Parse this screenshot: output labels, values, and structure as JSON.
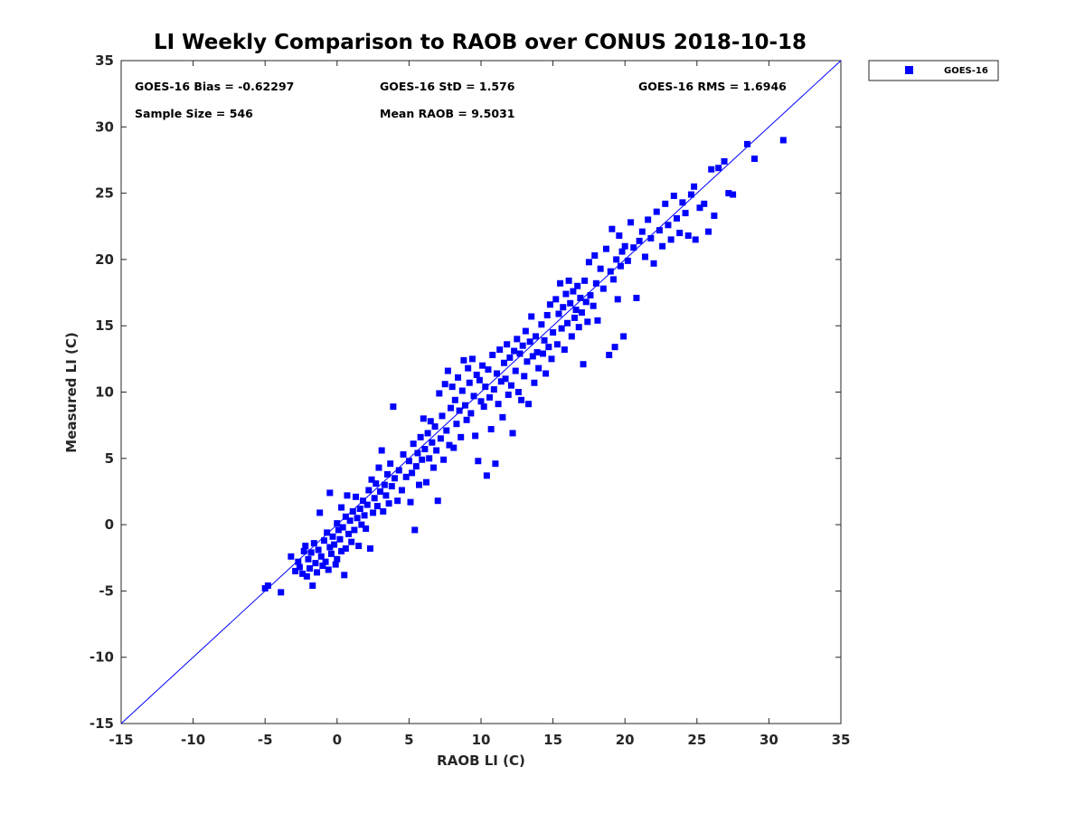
{
  "chart_data": {
    "type": "scatter",
    "title": "LI Weekly Comparison to RAOB over CONUS 2018-10-18",
    "xlabel": "RAOB LI (C)",
    "ylabel": "Measured LI (C)",
    "xlim": [
      -15,
      35
    ],
    "ylim": [
      -15,
      35
    ],
    "xticks": [
      "-15",
      "-10",
      "-5",
      "0",
      "5",
      "10",
      "15",
      "20",
      "25",
      "30",
      "35"
    ],
    "yticks": [
      "-15",
      "-10",
      "-5",
      "0",
      "5",
      "10",
      "15",
      "20",
      "25",
      "30",
      "35"
    ],
    "legend": {
      "position": "outside-top-right",
      "entries": [
        "GOES-16"
      ]
    },
    "stats": {
      "bias": "GOES-16 Bias = -0.62297",
      "std": "GOES-16 StD = 1.576",
      "rms": "GOES-16 RMS = 1.6946",
      "sample": "Sample Size = 546",
      "mean": "Mean RAOB = 9.5031"
    },
    "series": [
      {
        "name": "GOES-16",
        "color": "#0000ff",
        "marker": "square",
        "points": [
          [
            -5.0,
            -4.8
          ],
          [
            -4.8,
            -4.6
          ],
          [
            -3.9,
            -5.1
          ],
          [
            -3.2,
            -2.4
          ],
          [
            -2.9,
            -3.5
          ],
          [
            -2.7,
            -2.8
          ],
          [
            -2.6,
            -3.2
          ],
          [
            -2.4,
            -3.7
          ],
          [
            -2.3,
            -2.0
          ],
          [
            -2.2,
            -1.6
          ],
          [
            -2.1,
            -3.9
          ],
          [
            -2.0,
            -2.6
          ],
          [
            -1.9,
            -3.3
          ],
          [
            -1.8,
            -2.1
          ],
          [
            -1.7,
            -4.6
          ],
          [
            -1.6,
            -1.4
          ],
          [
            -1.5,
            -2.9
          ],
          [
            -1.4,
            -3.6
          ],
          [
            -1.3,
            -1.9
          ],
          [
            -1.2,
            0.9
          ],
          [
            -1.1,
            -2.4
          ],
          [
            -1.0,
            -3.1
          ],
          [
            -0.9,
            -1.2
          ],
          [
            -0.8,
            -2.8
          ],
          [
            -0.7,
            -0.6
          ],
          [
            -0.6,
            -3.4
          ],
          [
            -0.5,
            -1.7
          ],
          [
            -0.5,
            2.4
          ],
          [
            -0.4,
            -2.2
          ],
          [
            -0.3,
            -0.9
          ],
          [
            -0.2,
            -1.5
          ],
          [
            -0.1,
            -3.0
          ],
          [
            0.0,
            0.1
          ],
          [
            0.0,
            -2.6
          ],
          [
            0.1,
            -0.4
          ],
          [
            0.2,
            -1.1
          ],
          [
            0.3,
            -2.0
          ],
          [
            0.3,
            1.3
          ],
          [
            0.4,
            -0.2
          ],
          [
            0.5,
            -3.8
          ],
          [
            0.6,
            0.6
          ],
          [
            0.6,
            -1.8
          ],
          [
            0.7,
            2.2
          ],
          [
            0.8,
            -0.7
          ],
          [
            0.9,
            0.3
          ],
          [
            1.0,
            -1.3
          ],
          [
            1.1,
            1.0
          ],
          [
            1.2,
            -0.4
          ],
          [
            1.3,
            2.1
          ],
          [
            1.4,
            0.5
          ],
          [
            1.5,
            -1.6
          ],
          [
            1.6,
            1.2
          ],
          [
            1.7,
            0.0
          ],
          [
            1.8,
            1.8
          ],
          [
            1.9,
            0.7
          ],
          [
            2.0,
            -0.3
          ],
          [
            2.1,
            1.5
          ],
          [
            2.2,
            2.6
          ],
          [
            2.3,
            -1.8
          ],
          [
            2.4,
            3.4
          ],
          [
            2.5,
            0.9
          ],
          [
            2.6,
            2.0
          ],
          [
            2.7,
            3.1
          ],
          [
            2.8,
            1.4
          ],
          [
            2.9,
            4.3
          ],
          [
            3.0,
            2.5
          ],
          [
            3.1,
            5.6
          ],
          [
            3.2,
            1.0
          ],
          [
            3.3,
            3.0
          ],
          [
            3.4,
            2.2
          ],
          [
            3.5,
            3.8
          ],
          [
            3.6,
            1.6
          ],
          [
            3.7,
            4.6
          ],
          [
            3.8,
            2.9
          ],
          [
            3.9,
            8.9
          ],
          [
            4.0,
            3.5
          ],
          [
            4.2,
            1.8
          ],
          [
            4.3,
            4.1
          ],
          [
            4.5,
            2.6
          ],
          [
            4.6,
            5.3
          ],
          [
            4.8,
            3.6
          ],
          [
            5.0,
            4.8
          ],
          [
            5.1,
            1.7
          ],
          [
            5.2,
            3.9
          ],
          [
            5.3,
            6.1
          ],
          [
            5.4,
            -0.4
          ],
          [
            5.5,
            4.4
          ],
          [
            5.6,
            5.4
          ],
          [
            5.7,
            3.0
          ],
          [
            5.8,
            6.6
          ],
          [
            5.9,
            4.9
          ],
          [
            6.0,
            8.0
          ],
          [
            6.1,
            5.7
          ],
          [
            6.2,
            3.2
          ],
          [
            6.3,
            6.9
          ],
          [
            6.4,
            5.0
          ],
          [
            6.5,
            7.8
          ],
          [
            6.6,
            6.2
          ],
          [
            6.7,
            4.3
          ],
          [
            6.8,
            7.4
          ],
          [
            6.9,
            5.6
          ],
          [
            7.0,
            1.8
          ],
          [
            7.1,
            9.9
          ],
          [
            7.2,
            6.5
          ],
          [
            7.3,
            8.2
          ],
          [
            7.4,
            4.9
          ],
          [
            7.5,
            10.6
          ],
          [
            7.6,
            7.1
          ],
          [
            7.7,
            11.6
          ],
          [
            7.8,
            6.0
          ],
          [
            7.9,
            8.8
          ],
          [
            8.0,
            10.4
          ],
          [
            8.1,
            5.8
          ],
          [
            8.2,
            9.4
          ],
          [
            8.3,
            7.6
          ],
          [
            8.4,
            11.1
          ],
          [
            8.5,
            8.6
          ],
          [
            8.6,
            6.6
          ],
          [
            8.7,
            10.1
          ],
          [
            8.8,
            12.4
          ],
          [
            8.9,
            9.0
          ],
          [
            9.0,
            7.9
          ],
          [
            9.1,
            11.8
          ],
          [
            9.2,
            10.7
          ],
          [
            9.3,
            8.4
          ],
          [
            9.4,
            12.5
          ],
          [
            9.5,
            9.7
          ],
          [
            9.6,
            6.7
          ],
          [
            9.7,
            11.3
          ],
          [
            9.8,
            4.8
          ],
          [
            9.9,
            10.9
          ],
          [
            10.0,
            9.3
          ],
          [
            10.1,
            12.0
          ],
          [
            10.2,
            8.9
          ],
          [
            10.3,
            10.4
          ],
          [
            10.4,
            3.7
          ],
          [
            10.5,
            11.7
          ],
          [
            10.6,
            9.6
          ],
          [
            10.7,
            7.2
          ],
          [
            10.8,
            12.8
          ],
          [
            10.9,
            10.2
          ],
          [
            11.0,
            4.6
          ],
          [
            11.1,
            11.4
          ],
          [
            11.2,
            9.1
          ],
          [
            11.3,
            13.2
          ],
          [
            11.4,
            10.8
          ],
          [
            11.5,
            8.1
          ],
          [
            11.6,
            12.2
          ],
          [
            11.7,
            11.0
          ],
          [
            11.8,
            13.6
          ],
          [
            11.9,
            9.8
          ],
          [
            12.0,
            12.6
          ],
          [
            12.1,
            10.5
          ],
          [
            12.2,
            6.9
          ],
          [
            12.3,
            13.1
          ],
          [
            12.4,
            11.6
          ],
          [
            12.5,
            14.0
          ],
          [
            12.6,
            10.0
          ],
          [
            12.7,
            12.9
          ],
          [
            12.8,
            9.4
          ],
          [
            12.9,
            13.5
          ],
          [
            13.0,
            11.2
          ],
          [
            13.1,
            14.6
          ],
          [
            13.2,
            12.3
          ],
          [
            13.3,
            9.1
          ],
          [
            13.4,
            13.8
          ],
          [
            13.5,
            15.7
          ],
          [
            13.6,
            12.7
          ],
          [
            13.7,
            10.7
          ],
          [
            13.8,
            14.2
          ],
          [
            13.9,
            13.0
          ],
          [
            14.0,
            11.8
          ],
          [
            14.2,
            15.1
          ],
          [
            14.3,
            12.9
          ],
          [
            14.4,
            13.9
          ],
          [
            14.5,
            11.4
          ],
          [
            14.6,
            15.8
          ],
          [
            14.7,
            13.4
          ],
          [
            14.8,
            16.6
          ],
          [
            14.9,
            12.5
          ],
          [
            15.0,
            14.5
          ],
          [
            15.2,
            17.0
          ],
          [
            15.3,
            13.6
          ],
          [
            15.4,
            15.9
          ],
          [
            15.5,
            18.2
          ],
          [
            15.6,
            14.8
          ],
          [
            15.7,
            16.4
          ],
          [
            15.8,
            13.2
          ],
          [
            15.9,
            17.4
          ],
          [
            16.0,
            15.2
          ],
          [
            16.1,
            18.4
          ],
          [
            16.2,
            16.7
          ],
          [
            16.3,
            14.2
          ],
          [
            16.4,
            17.6
          ],
          [
            16.5,
            15.6
          ],
          [
            16.6,
            16.2
          ],
          [
            16.7,
            18.0
          ],
          [
            16.8,
            14.9
          ],
          [
            16.9,
            17.1
          ],
          [
            17.0,
            16.0
          ],
          [
            17.1,
            12.1
          ],
          [
            17.2,
            18.4
          ],
          [
            17.3,
            16.8
          ],
          [
            17.4,
            15.3
          ],
          [
            17.5,
            19.8
          ],
          [
            17.6,
            17.3
          ],
          [
            17.8,
            16.5
          ],
          [
            17.9,
            20.3
          ],
          [
            18.0,
            18.2
          ],
          [
            18.1,
            15.4
          ],
          [
            18.3,
            19.3
          ],
          [
            18.5,
            17.8
          ],
          [
            18.7,
            20.8
          ],
          [
            18.9,
            12.8
          ],
          [
            19.0,
            19.1
          ],
          [
            19.1,
            22.3
          ],
          [
            19.2,
            18.5
          ],
          [
            19.3,
            13.4
          ],
          [
            19.4,
            20.0
          ],
          [
            19.5,
            17.0
          ],
          [
            19.6,
            21.8
          ],
          [
            19.7,
            19.5
          ],
          [
            19.8,
            20.6
          ],
          [
            19.9,
            14.2
          ],
          [
            20.0,
            21.0
          ],
          [
            20.2,
            19.9
          ],
          [
            20.4,
            22.8
          ],
          [
            20.6,
            20.9
          ],
          [
            20.8,
            17.1
          ],
          [
            21.0,
            21.4
          ],
          [
            21.2,
            22.1
          ],
          [
            21.4,
            20.2
          ],
          [
            21.6,
            23.0
          ],
          [
            21.8,
            21.6
          ],
          [
            22.0,
            19.7
          ],
          [
            22.2,
            23.6
          ],
          [
            22.4,
            22.2
          ],
          [
            22.6,
            21.0
          ],
          [
            22.8,
            24.2
          ],
          [
            23.0,
            22.6
          ],
          [
            23.2,
            21.5
          ],
          [
            23.4,
            24.8
          ],
          [
            23.6,
            23.1
          ],
          [
            23.8,
            22.0
          ],
          [
            24.0,
            24.3
          ],
          [
            24.2,
            23.5
          ],
          [
            24.4,
            21.8
          ],
          [
            24.6,
            24.9
          ],
          [
            24.8,
            25.5
          ],
          [
            24.9,
            21.5
          ],
          [
            25.2,
            23.9
          ],
          [
            25.5,
            24.2
          ],
          [
            25.8,
            22.1
          ],
          [
            26.0,
            26.8
          ],
          [
            26.2,
            23.3
          ],
          [
            26.5,
            26.9
          ],
          [
            26.9,
            27.4
          ],
          [
            27.2,
            25.0
          ],
          [
            27.5,
            24.9
          ],
          [
            28.5,
            28.7
          ],
          [
            29.0,
            27.6
          ],
          [
            31.0,
            29.0
          ]
        ]
      }
    ]
  }
}
